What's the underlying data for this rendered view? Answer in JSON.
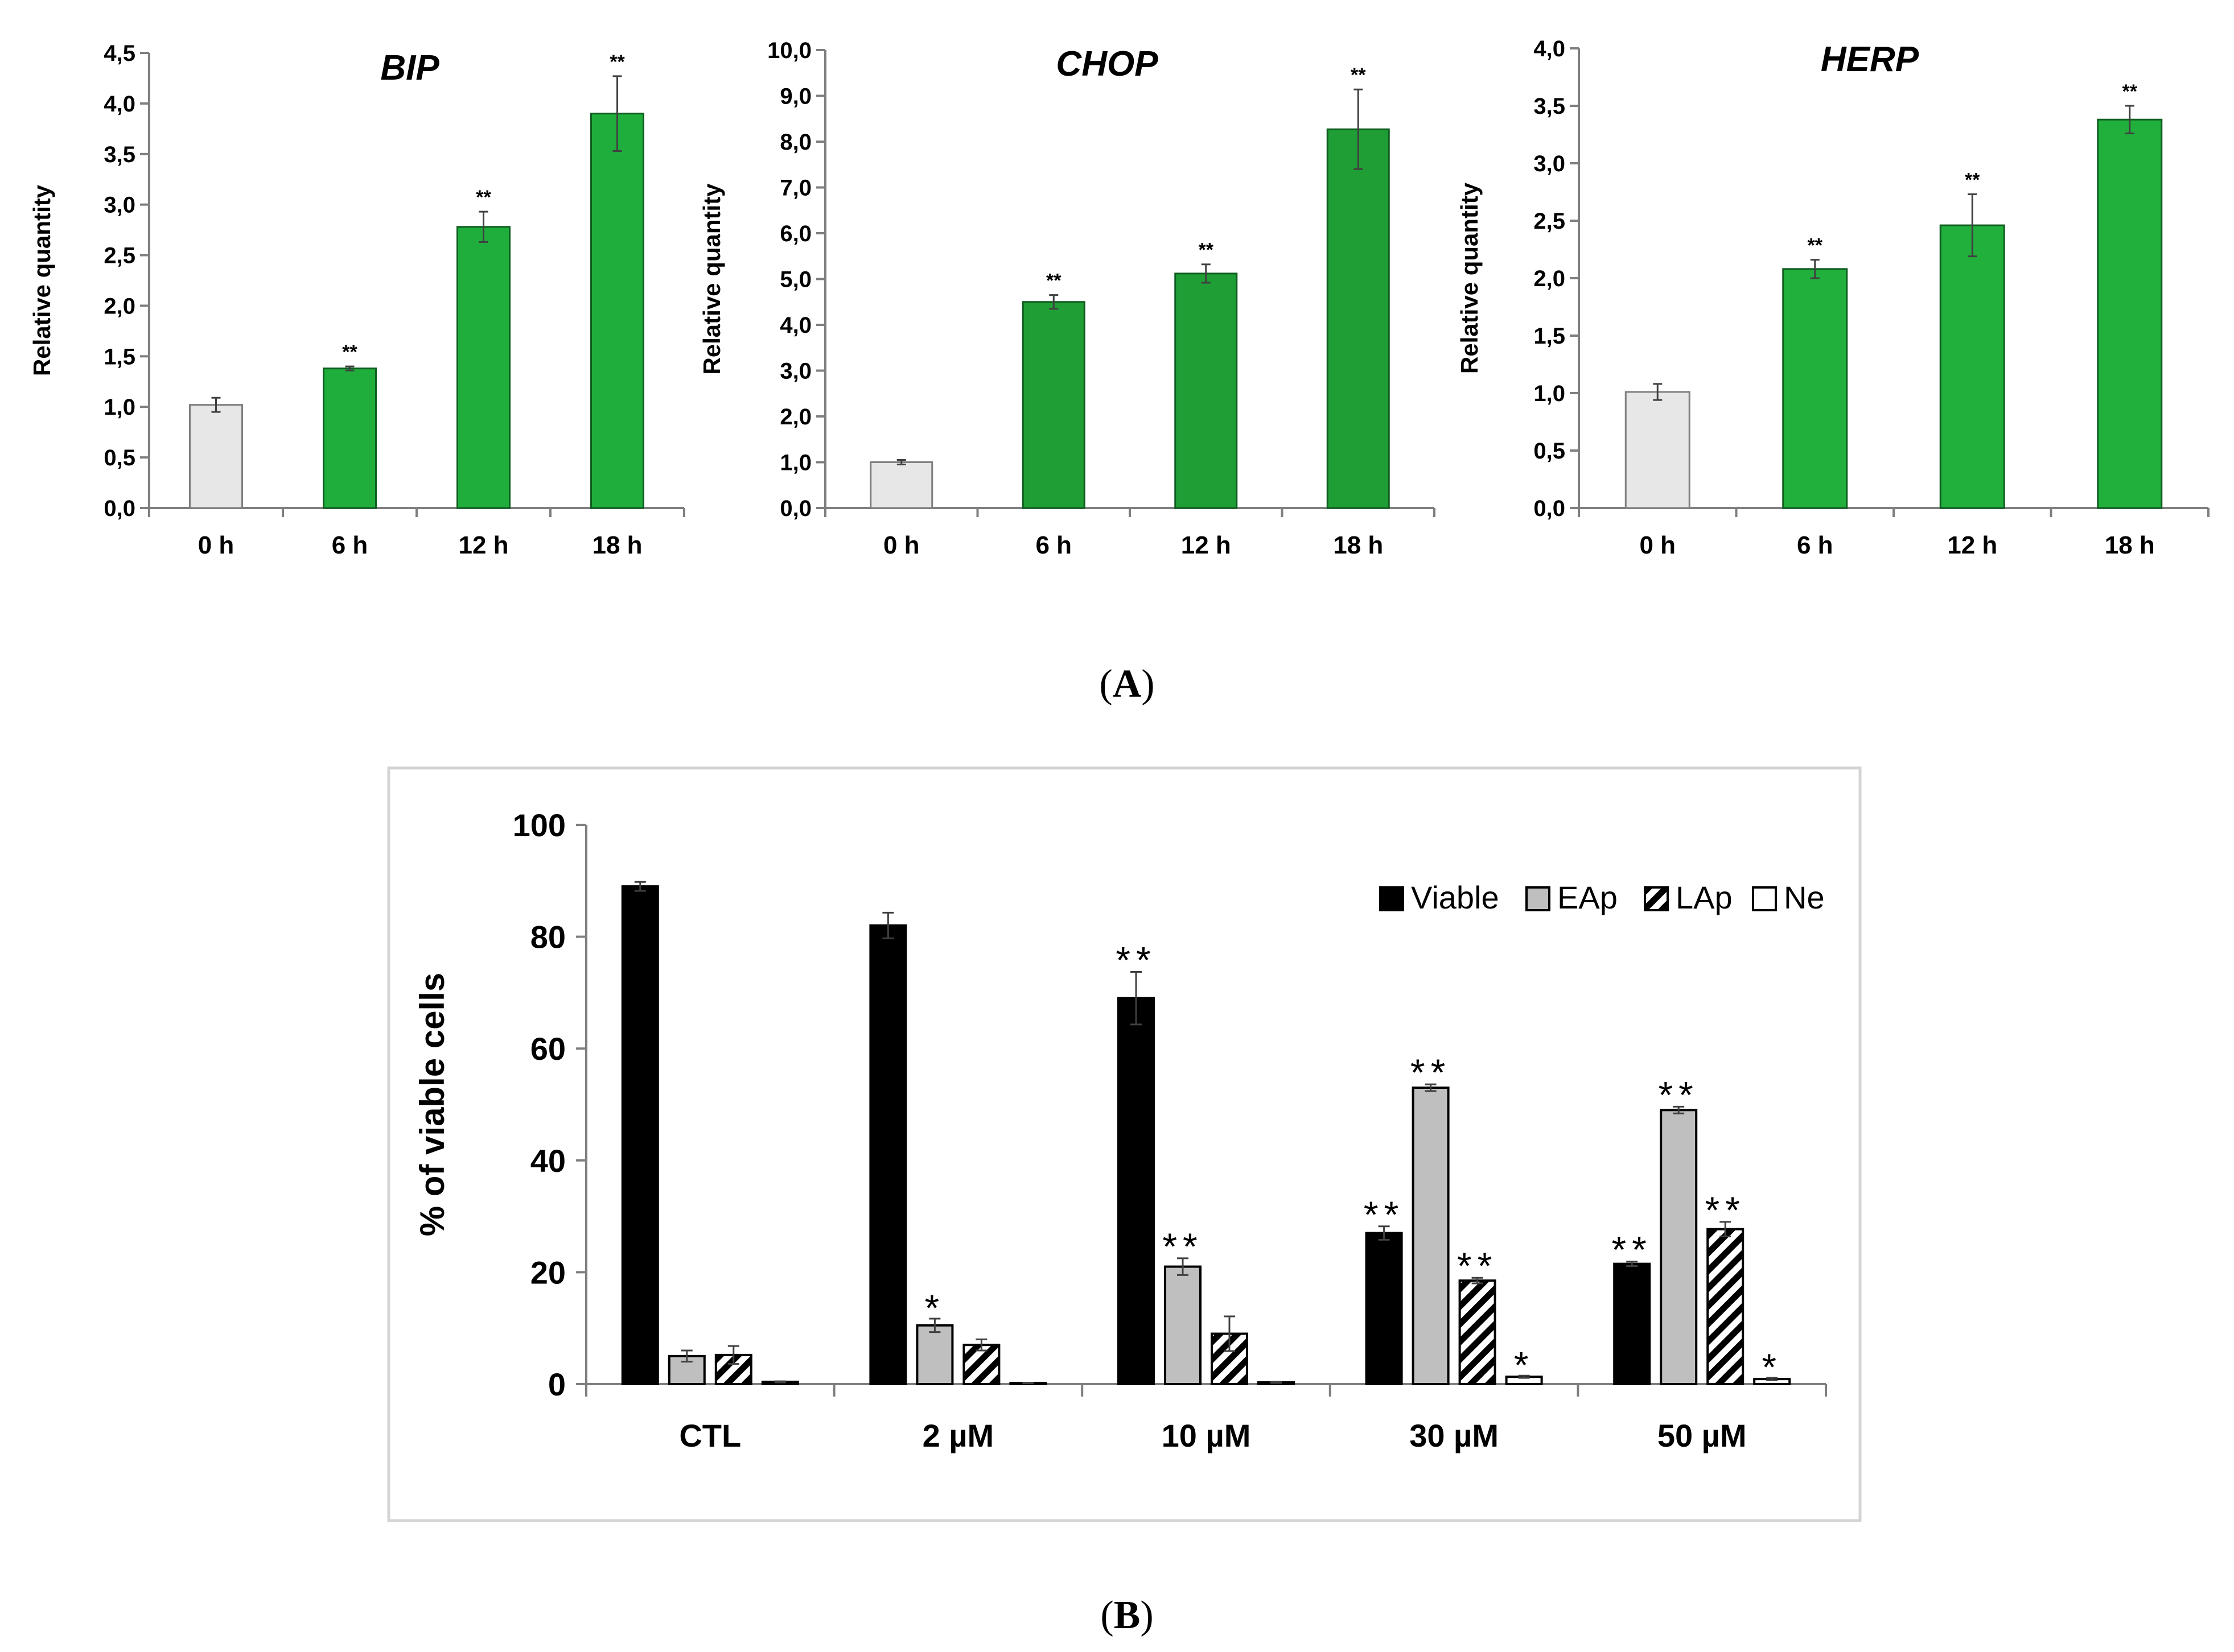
{
  "chart_data": [
    {
      "id": "bip",
      "type": "bar",
      "title": "BIP",
      "ylabel": "Relative quantity",
      "categories": [
        "0 h",
        "6 h",
        "12 h",
        "18 h"
      ],
      "values": [
        1.02,
        1.38,
        2.78,
        3.9
      ],
      "errors": [
        0.07,
        0.02,
        0.15,
        0.37
      ],
      "significance": [
        "",
        "**",
        "**",
        "**"
      ],
      "colors": [
        "#e7e7e7",
        "#1fae3c",
        "#1fae3c",
        "#1fae3c"
      ],
      "ylim": [
        0,
        4.5
      ],
      "yticks": [
        "0,0",
        "0,5",
        "1,0",
        "1,5",
        "2,0",
        "2,5",
        "3,0",
        "3,5",
        "4,0",
        "4,5"
      ]
    },
    {
      "id": "chop",
      "type": "bar",
      "title": "CHOP",
      "ylabel": "Relative quantity",
      "categories": [
        "0 h",
        "6 h",
        "12 h",
        "18 h"
      ],
      "values": [
        1.0,
        4.5,
        5.12,
        8.27
      ],
      "errors": [
        0.05,
        0.15,
        0.2,
        0.87
      ],
      "significance": [
        "",
        "**",
        "**",
        "**"
      ],
      "colors": [
        "#e7e7e7",
        "#1f9e35",
        "#1f9e35",
        "#1f9e35"
      ],
      "ylim": [
        0,
        10
      ],
      "yticks": [
        "0,0",
        "1,0",
        "2,0",
        "3,0",
        "4,0",
        "5,0",
        "6,0",
        "7,0",
        "8,0",
        "9,0",
        "10,0"
      ]
    },
    {
      "id": "herp",
      "type": "bar",
      "title": "HERP",
      "ylabel": "Relative quantity",
      "categories": [
        "0 h",
        "6 h",
        "12 h",
        "18 h"
      ],
      "values": [
        1.01,
        2.08,
        2.46,
        3.38
      ],
      "errors": [
        0.07,
        0.08,
        0.27,
        0.12
      ],
      "significance": [
        "",
        "**",
        "**",
        "**"
      ],
      "colors": [
        "#e7e7e7",
        "#22b03d",
        "#22b03d",
        "#22b03d"
      ],
      "ylim": [
        0,
        4.0
      ],
      "yticks": [
        "0,0",
        "0,5",
        "1,0",
        "1,5",
        "2,0",
        "2,5",
        "3,0",
        "3,5",
        "4,0"
      ]
    },
    {
      "id": "viability",
      "type": "bar",
      "title": "",
      "ylabel": "% of viable cells",
      "categories": [
        "CTL",
        "2 µM",
        "10 µM",
        "30 µM",
        "50 µM"
      ],
      "ylim": [
        0,
        100
      ],
      "yticks": [
        "0",
        "20",
        "40",
        "60",
        "80",
        "100"
      ],
      "legend_position": "top-right",
      "series": [
        {
          "name": "Viable",
          "pattern": "solid-black",
          "values": [
            89,
            82,
            69,
            27,
            21.5
          ],
          "errors": [
            0.8,
            2.3,
            4.7,
            1.2,
            0.4
          ],
          "significance": [
            "",
            "",
            "**",
            "**",
            "**"
          ]
        },
        {
          "name": "EAp",
          "pattern": "solid-grey",
          "values": [
            5,
            10.5,
            21,
            53,
            49
          ],
          "errors": [
            1.0,
            1.2,
            1.5,
            0.6,
            0.6
          ],
          "significance": [
            "",
            "*",
            "**",
            "**",
            "**"
          ]
        },
        {
          "name": "LAp",
          "pattern": "hatched",
          "values": [
            5.2,
            7,
            9,
            18.5,
            27.7
          ],
          "errors": [
            1.6,
            1.0,
            3.1,
            0.5,
            1.3
          ],
          "significance": [
            "",
            "",
            "",
            "**",
            "**"
          ]
        },
        {
          "name": "Ne",
          "pattern": "white",
          "values": [
            0.4,
            0.2,
            0.3,
            1.3,
            0.9
          ],
          "errors": [
            0.1,
            0.05,
            0.1,
            0.2,
            0.2
          ],
          "significance": [
            "",
            "",
            "",
            "*",
            "*"
          ]
        }
      ]
    }
  ],
  "captions": {
    "a": "(A)",
    "b": "(B)"
  }
}
